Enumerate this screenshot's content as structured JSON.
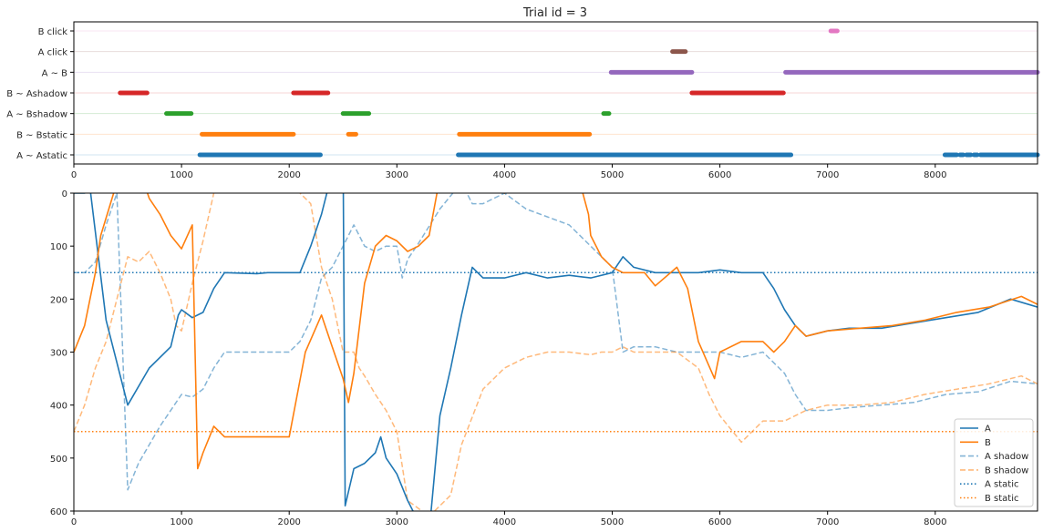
{
  "chart_data": [
    {
      "type": "event-raster",
      "title": "Trial id = 3",
      "xlim": [
        0,
        8950
      ],
      "x_ticks": [
        0,
        1000,
        2000,
        3000,
        4000,
        5000,
        6000,
        7000,
        8000
      ],
      "rows": [
        {
          "label": "A ~ Astatic",
          "color": "#1f77b4",
          "intervals": [
            [
              1170,
              2290
            ],
            [
              3570,
              6660
            ],
            [
              8090,
              8200
            ],
            [
              8230,
              8260
            ],
            [
              8290,
              8330
            ],
            [
              8360,
              8390
            ],
            [
              8420,
              8950
            ]
          ]
        },
        {
          "label": "B ~ Bstatic",
          "color": "#ff7f0e",
          "intervals": [
            [
              1190,
              2040
            ],
            [
              2550,
              2620
            ],
            [
              3580,
              4790
            ]
          ]
        },
        {
          "label": "A ~ Bshadow",
          "color": "#2ca02c",
          "intervals": [
            [
              860,
              1090
            ],
            [
              2500,
              2740
            ],
            [
              4920,
              4970
            ]
          ]
        },
        {
          "label": "B ~ Ashadow",
          "color": "#d62728",
          "intervals": [
            [
              430,
              680
            ],
            [
              2040,
              2360
            ],
            [
              5740,
              6590
            ]
          ]
        },
        {
          "label": "A ~ B",
          "color": "#9467bd",
          "intervals": [
            [
              4990,
              5740
            ],
            [
              6610,
              8950
            ]
          ]
        },
        {
          "label": "A click",
          "color": "#8c564b",
          "intervals": [
            [
              5560,
              5680
            ]
          ]
        },
        {
          "label": "B click",
          "color": "#e377c2",
          "intervals": [
            [
              7030,
              7090
            ]
          ]
        }
      ]
    },
    {
      "type": "line",
      "xlim": [
        0,
        8950
      ],
      "ylim": [
        600,
        0
      ],
      "x_ticks": [
        0,
        1000,
        2000,
        3000,
        4000,
        5000,
        6000,
        7000,
        8000
      ],
      "y_ticks": [
        0,
        100,
        200,
        300,
        400,
        500,
        600
      ],
      "legend_position": "bottom-right",
      "series": [
        {
          "name": "A",
          "color": "#1f77b4",
          "dash": "solid",
          "x": [
            0,
            100,
            150,
            300,
            500,
            700,
            900,
            970,
            1000,
            1100,
            1200,
            1300,
            1400,
            1700,
            1800,
            2100,
            2200,
            2300,
            2400,
            2500,
            2520,
            2600,
            2700,
            2800,
            2850,
            2900,
            3000,
            3100,
            3200,
            3300,
            3400,
            3500,
            3600,
            3700,
            3800,
            4000,
            4200,
            4400,
            4600,
            4800,
            5000,
            5100,
            5200,
            5400,
            5600,
            5800,
            6000,
            6200,
            6400,
            6500,
            6600,
            6700,
            6800,
            7000,
            7200,
            7500,
            7800,
            8100,
            8400,
            8700,
            8950
          ],
          "y": [
            0,
            0,
            -10,
            240,
            400,
            330,
            290,
            230,
            220,
            235,
            225,
            180,
            150,
            152,
            150,
            150,
            100,
            40,
            -40,
            -80,
            590,
            520,
            510,
            490,
            460,
            500,
            530,
            580,
            620,
            640,
            420,
            330,
            230,
            140,
            160,
            160,
            150,
            160,
            155,
            160,
            150,
            120,
            140,
            150,
            150,
            150,
            145,
            150,
            150,
            180,
            220,
            250,
            270,
            260,
            255,
            255,
            245,
            235,
            225,
            200,
            215
          ]
        },
        {
          "name": "B",
          "color": "#ff7f0e",
          "dash": "solid",
          "x": [
            0,
            100,
            200,
            250,
            400,
            600,
            700,
            800,
            900,
            1000,
            1100,
            1150,
            1200,
            1300,
            1400,
            1800,
            1900,
            2000,
            2150,
            2300,
            2400,
            2500,
            2550,
            2600,
            2700,
            2800,
            2900,
            3000,
            3100,
            3200,
            3300,
            3400,
            3600,
            3700,
            3800,
            4000,
            4200,
            4500,
            4700,
            4780,
            4800,
            4900,
            5000,
            5100,
            5200,
            5300,
            5400,
            5600,
            5700,
            5800,
            5950,
            6000,
            6200,
            6400,
            6500,
            6600,
            6700,
            6800,
            7000,
            7300,
            7600,
            7900,
            8200,
            8500,
            8800,
            8950
          ],
          "y": [
            300,
            250,
            150,
            80,
            -20,
            -50,
            10,
            40,
            80,
            105,
            60,
            520,
            490,
            440,
            460,
            460,
            460,
            460,
            300,
            230,
            290,
            350,
            395,
            340,
            170,
            100,
            80,
            90,
            110,
            100,
            80,
            -30,
            -60,
            -20,
            -40,
            0,
            -30,
            -40,
            -20,
            40,
            80,
            120,
            140,
            150,
            150,
            150,
            175,
            140,
            180,
            280,
            350,
            300,
            280,
            280,
            300,
            280,
            250,
            270,
            260,
            255,
            250,
            240,
            225,
            215,
            195,
            210
          ]
        },
        {
          "name": "A shadow",
          "color": "#1f77b4",
          "dash": "dashed",
          "x": [
            0,
            100,
            200,
            300,
            400,
            500,
            600,
            800,
            1000,
            1100,
            1200,
            1300,
            1400,
            1500,
            1700,
            2000,
            2100,
            2200,
            2300,
            2400,
            2500,
            2600,
            2700,
            2800,
            2900,
            3000,
            3050,
            3100,
            3200,
            3400,
            3600,
            3700,
            3800,
            4000,
            4200,
            4600,
            4800,
            5000,
            5100,
            5200,
            5400,
            5600,
            5800,
            6000,
            6200,
            6400,
            6600,
            6700,
            6800,
            7000,
            7200,
            7500,
            7800,
            8100,
            8400,
            8700,
            8950
          ],
          "y": [
            150,
            150,
            130,
            60,
            0,
            560,
            510,
            440,
            380,
            385,
            370,
            330,
            300,
            300,
            300,
            300,
            280,
            240,
            160,
            140,
            100,
            60,
            100,
            110,
            100,
            100,
            160,
            125,
            95,
            30,
            -20,
            20,
            20,
            0,
            30,
            60,
            100,
            140,
            300,
            290,
            290,
            300,
            300,
            300,
            310,
            300,
            340,
            380,
            410,
            410,
            405,
            400,
            395,
            380,
            375,
            355,
            360
          ]
        },
        {
          "name": "B shadow",
          "color": "#ff7f0e",
          "dash": "dashed",
          "x": [
            0,
            100,
            200,
            300,
            400,
            500,
            600,
            700,
            800,
            900,
            950,
            1000,
            1100,
            1200,
            1300,
            1500,
            1800,
            2000,
            2100,
            2200,
            2300,
            2400,
            2500,
            2600,
            2650,
            2700,
            2800,
            2900,
            3000,
            3100,
            3300,
            3500,
            3600,
            3800,
            4000,
            4200,
            4400,
            4600,
            4800,
            4900,
            5000,
            5100,
            5200,
            5400,
            5600,
            5800,
            5900,
            6000,
            6200,
            6400,
            6600,
            6800,
            7000,
            7300,
            7600,
            7900,
            8200,
            8500,
            8800,
            8950
          ],
          "y": [
            450,
            400,
            330,
            280,
            200,
            120,
            130,
            110,
            150,
            200,
            250,
            260,
            170,
            90,
            0,
            -30,
            -40,
            -10,
            0,
            20,
            140,
            200,
            300,
            300,
            330,
            345,
            380,
            410,
            450,
            580,
            610,
            570,
            475,
            370,
            330,
            310,
            300,
            300,
            305,
            300,
            300,
            290,
            300,
            300,
            300,
            330,
            380,
            420,
            470,
            430,
            430,
            410,
            400,
            400,
            395,
            380,
            370,
            360,
            345,
            360
          ]
        },
        {
          "name": "A static",
          "color": "#1f77b4",
          "dash": "dotted",
          "x": [
            0,
            8950
          ],
          "y": [
            150,
            150
          ]
        },
        {
          "name": "B static",
          "color": "#ff7f0e",
          "dash": "dotted",
          "x": [
            0,
            8950
          ],
          "y": [
            450,
            450
          ]
        }
      ]
    }
  ]
}
